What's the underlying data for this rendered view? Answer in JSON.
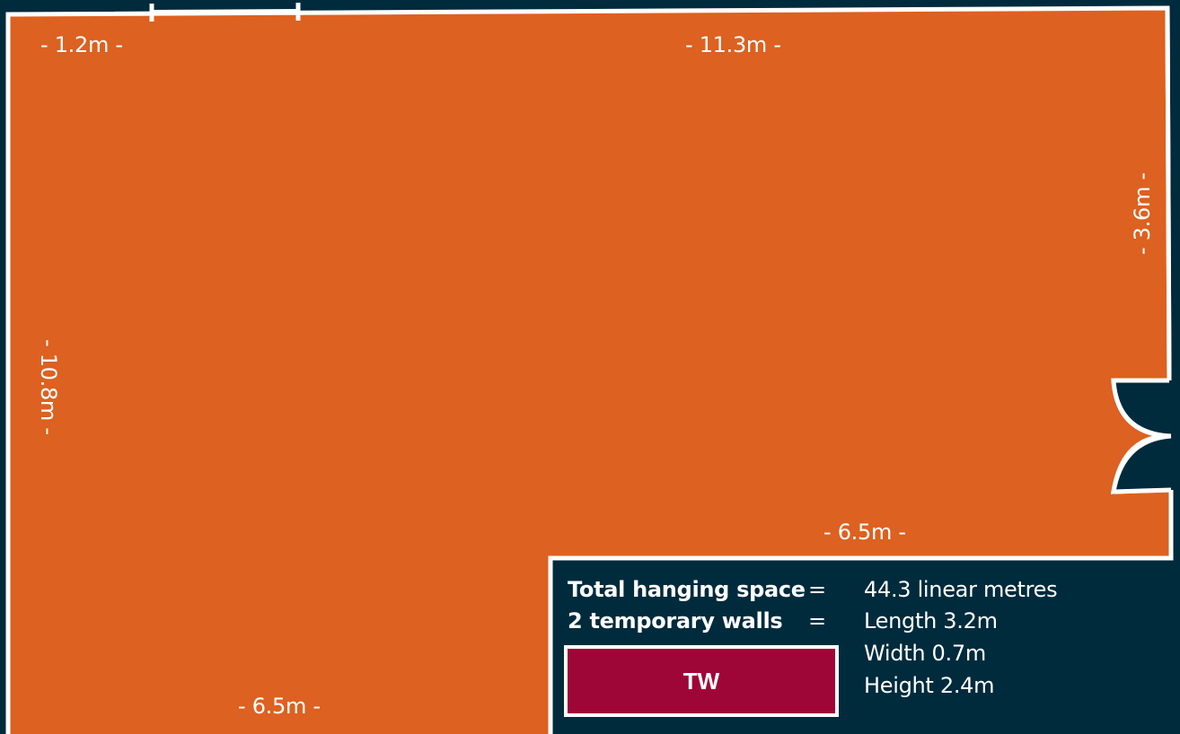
{
  "colors": {
    "background": "#002b3c",
    "floor": "#dd6120",
    "walls": "#ffffff",
    "temporary_wall": "#9e0638"
  },
  "dimensions": {
    "top_left_segment": "- 1.2m -",
    "top_wall": "- 11.3m -",
    "right_upper_wall": "- 3.6m -",
    "left_wall": "- 10.8m -",
    "inner_step_wall": "- 6.5m -",
    "bottom_wall": "- 6.5m -"
  },
  "info": {
    "total_label": "Total hanging space",
    "equals": "=",
    "total_value": "44.3 linear metres",
    "temp_walls_label": "2 temporary walls",
    "temp_walls_length": "Length 3.2m",
    "temp_walls_width": "Width 0.7m",
    "temp_walls_height": "Height 2.4m"
  },
  "legend": {
    "temp_wall_symbol": "TW"
  }
}
